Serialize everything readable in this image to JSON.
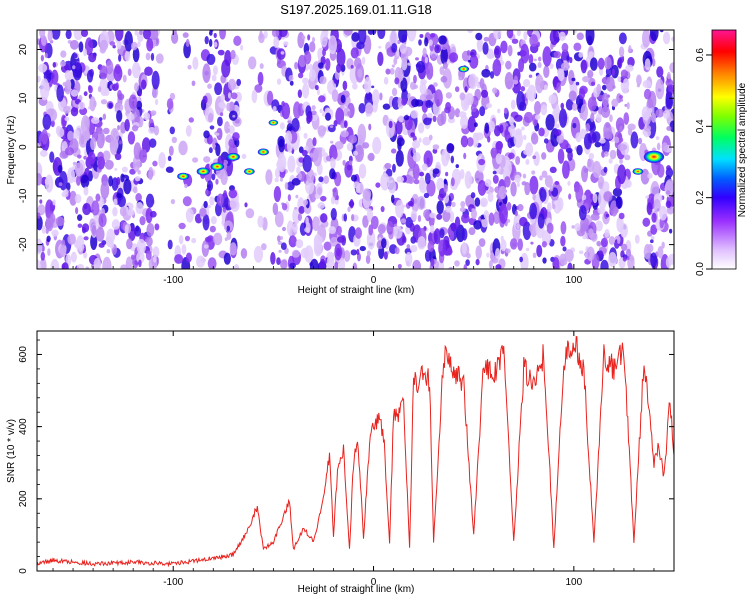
{
  "title": "S197.2025.169.01.11.G18",
  "chart_data": [
    {
      "type": "heatmap",
      "xlabel": "Height of straight line (km)",
      "ylabel": "Frequency (Hz)",
      "xlim": [
        -168,
        150
      ],
      "ylim": [
        -25,
        24
      ],
      "xticks": [
        -100,
        0,
        100
      ],
      "yticks": [
        -20,
        -10,
        0,
        10,
        20
      ],
      "colorbar": {
        "label": "Normalized spectral amplitude",
        "range": [
          0.0,
          0.67
        ],
        "ticks": [
          0.0,
          0.2,
          0.4,
          0.6
        ],
        "colormap": [
          "#ffffff",
          "#e6c8ff",
          "#9b30ff",
          "#5a00e0",
          "#0000ff",
          "#00c0ff",
          "#00ff80",
          "#80ff00",
          "#ffff00",
          "#ff8000",
          "#ff0000",
          "#ff1493"
        ]
      },
      "features": [
        {
          "x": -95,
          "y": -6,
          "value": 0.25
        },
        {
          "x": -85,
          "y": -5,
          "value": 0.3
        },
        {
          "x": -78,
          "y": -4,
          "value": 0.32
        },
        {
          "x": -70,
          "y": -2,
          "value": 0.3
        },
        {
          "x": -62,
          "y": -5,
          "value": 0.2
        },
        {
          "x": -55,
          "y": -1,
          "value": 0.22
        },
        {
          "x": -50,
          "y": 5,
          "value": 0.15
        },
        {
          "x": 45,
          "y": 16,
          "value": 0.2
        },
        {
          "x": 140,
          "y": -2,
          "value": 0.6
        },
        {
          "x": 132,
          "y": -5,
          "value": 0.2
        }
      ]
    },
    {
      "type": "line",
      "xlabel": "Height of straight line (km)",
      "ylabel": "SNR (10 * v/v)",
      "xlim": [
        -168,
        150
      ],
      "ylim": [
        0,
        665
      ],
      "xticks": [
        -100,
        0,
        100
      ],
      "yticks": [
        0,
        200,
        400,
        600
      ],
      "series": [
        {
          "color": "#e8231e",
          "x": [
            -168,
            -160,
            -150,
            -140,
            -130,
            -120,
            -110,
            -100,
            -90,
            -80,
            -75,
            -70,
            -62,
            -58,
            -55,
            -50,
            -45,
            -42,
            -40,
            -35,
            -30,
            -25,
            -22,
            -20,
            -18,
            -15,
            -12,
            -10,
            -8,
            -5,
            -2,
            0,
            3,
            5,
            8,
            10,
            12,
            15,
            18,
            20,
            22,
            25,
            28,
            30,
            35,
            40,
            45,
            50,
            55,
            60,
            65,
            70,
            75,
            80,
            85,
            90,
            95,
            100,
            105,
            110,
            115,
            120,
            125,
            130,
            135,
            140,
            142,
            145,
            148,
            150
          ],
          "y": [
            20,
            30,
            25,
            20,
            22,
            25,
            22,
            20,
            28,
            35,
            40,
            45,
            120,
            180,
            60,
            80,
            150,
            200,
            60,
            120,
            80,
            200,
            320,
            100,
            280,
            340,
            60,
            300,
            380,
            90,
            360,
            400,
            420,
            380,
            80,
            440,
            420,
            460,
            60,
            540,
            520,
            560,
            520,
            80,
            600,
            560,
            520,
            100,
            580,
            540,
            620,
            80,
            560,
            520,
            600,
            60,
            580,
            640,
            560,
            80,
            600,
            560,
            620,
            80,
            580,
            300,
            350,
            260,
            480,
            320
          ]
        }
      ]
    }
  ]
}
